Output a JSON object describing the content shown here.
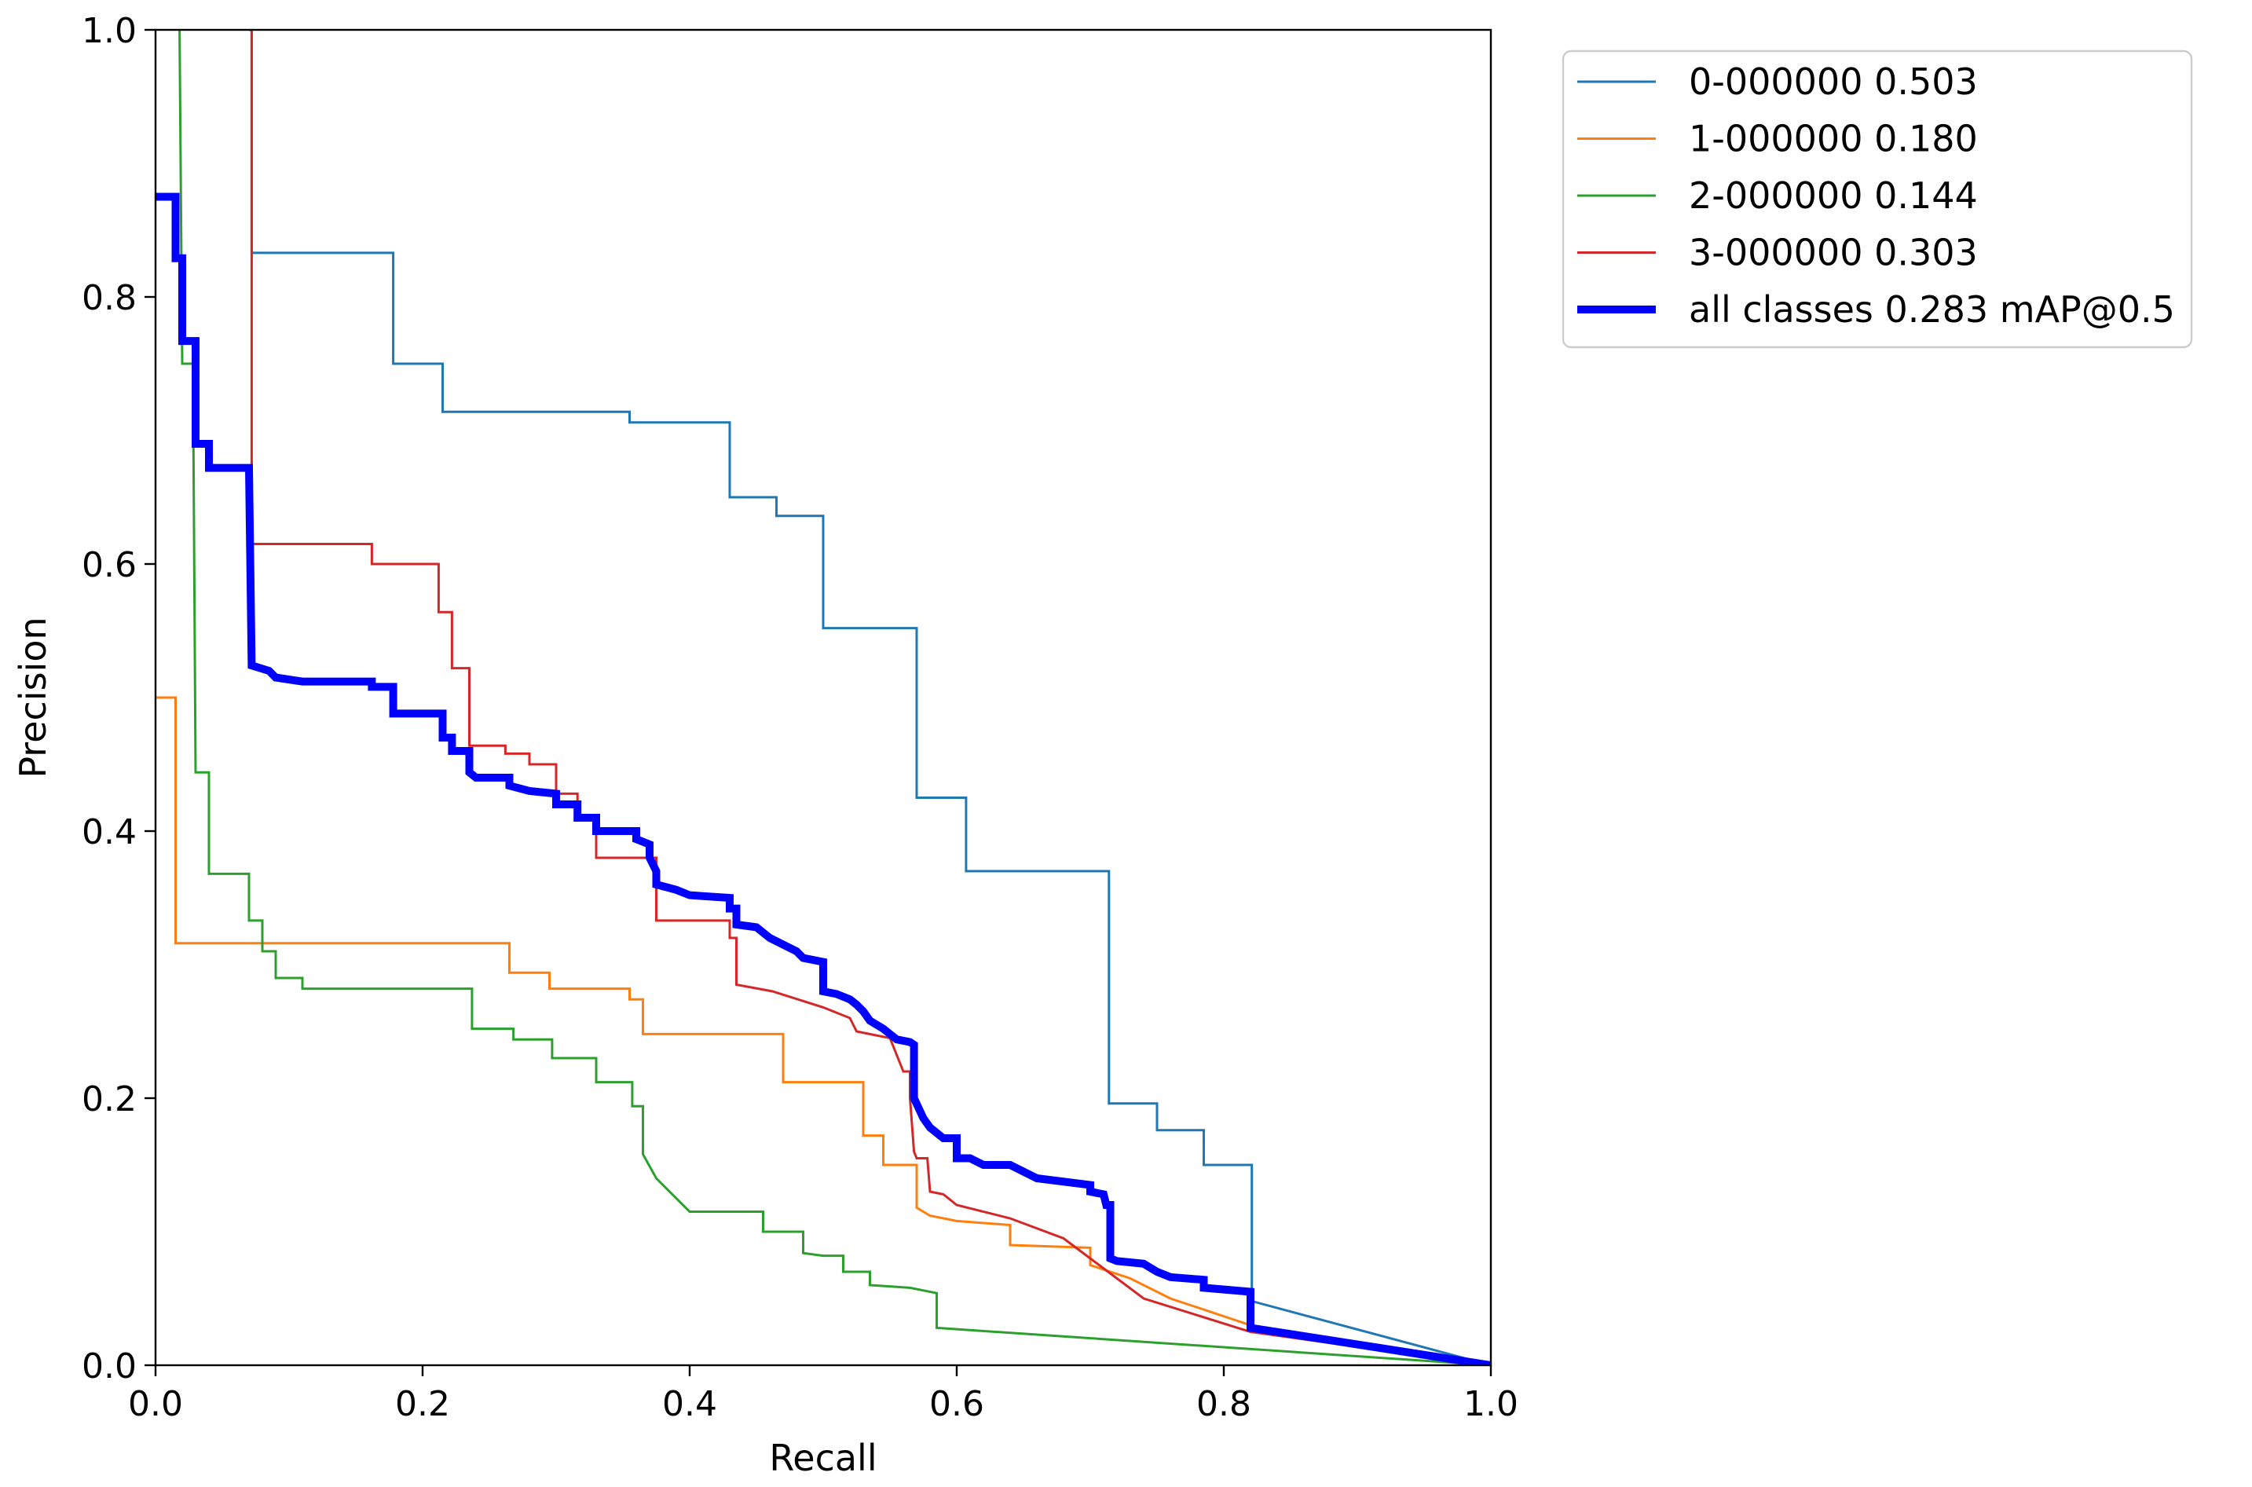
{
  "chart_data": {
    "type": "line",
    "title": "",
    "xlabel": "Recall",
    "ylabel": "Precision",
    "xlim": [
      0,
      1
    ],
    "ylim": [
      0,
      1
    ],
    "xticks": [
      "0.0",
      "0.2",
      "0.4",
      "0.6",
      "0.8",
      "1.0"
    ],
    "yticks": [
      "0.0",
      "0.2",
      "0.4",
      "0.6",
      "0.8",
      "1.0"
    ],
    "legend_position": "outside-top-right",
    "series": [
      {
        "name": "0-000000 0.503",
        "color": "#1f77b4",
        "width": "thin",
        "points": [
          [
            0.07,
            1.0
          ],
          [
            0.072,
            1.0
          ],
          [
            0.072,
            0.833
          ],
          [
            0.178,
            0.833
          ],
          [
            0.178,
            0.75
          ],
          [
            0.215,
            0.75
          ],
          [
            0.215,
            0.714
          ],
          [
            0.355,
            0.714
          ],
          [
            0.355,
            0.706
          ],
          [
            0.43,
            0.706
          ],
          [
            0.43,
            0.65
          ],
          [
            0.465,
            0.65
          ],
          [
            0.465,
            0.636
          ],
          [
            0.5,
            0.636
          ],
          [
            0.5,
            0.552
          ],
          [
            0.57,
            0.552
          ],
          [
            0.57,
            0.425
          ],
          [
            0.607,
            0.425
          ],
          [
            0.607,
            0.37
          ],
          [
            0.714,
            0.37
          ],
          [
            0.714,
            0.196
          ],
          [
            0.75,
            0.196
          ],
          [
            0.75,
            0.176
          ],
          [
            0.785,
            0.176
          ],
          [
            0.785,
            0.15
          ],
          [
            0.821,
            0.15
          ],
          [
            0.821,
            0.048
          ],
          [
            1.0,
            0.0
          ]
        ]
      },
      {
        "name": "1-000000 0.180",
        "color": "#ff7f0e",
        "width": "thin",
        "points": [
          [
            0.0,
            0.5
          ],
          [
            0.015,
            0.5
          ],
          [
            0.015,
            0.316
          ],
          [
            0.265,
            0.316
          ],
          [
            0.265,
            0.294
          ],
          [
            0.295,
            0.294
          ],
          [
            0.295,
            0.282
          ],
          [
            0.355,
            0.282
          ],
          [
            0.355,
            0.274
          ],
          [
            0.365,
            0.274
          ],
          [
            0.365,
            0.248
          ],
          [
            0.47,
            0.248
          ],
          [
            0.47,
            0.212
          ],
          [
            0.53,
            0.212
          ],
          [
            0.53,
            0.172
          ],
          [
            0.545,
            0.172
          ],
          [
            0.545,
            0.15
          ],
          [
            0.57,
            0.15
          ],
          [
            0.57,
            0.118
          ],
          [
            0.58,
            0.112
          ],
          [
            0.6,
            0.108
          ],
          [
            0.64,
            0.105
          ],
          [
            0.64,
            0.09
          ],
          [
            0.7,
            0.088
          ],
          [
            0.7,
            0.075
          ],
          [
            0.73,
            0.065
          ],
          [
            0.76,
            0.05
          ],
          [
            0.82,
            0.03
          ],
          [
            1.0,
            0.0
          ]
        ]
      },
      {
        "name": "2-000000 0.144",
        "color": "#2ca02c",
        "width": "thin",
        "points": [
          [
            0.018,
            1.0
          ],
          [
            0.02,
            0.75
          ],
          [
            0.028,
            0.75
          ],
          [
            0.03,
            0.444
          ],
          [
            0.04,
            0.444
          ],
          [
            0.04,
            0.368
          ],
          [
            0.07,
            0.368
          ],
          [
            0.07,
            0.333
          ],
          [
            0.08,
            0.333
          ],
          [
            0.08,
            0.31
          ],
          [
            0.09,
            0.31
          ],
          [
            0.09,
            0.29
          ],
          [
            0.11,
            0.29
          ],
          [
            0.11,
            0.282
          ],
          [
            0.237,
            0.282
          ],
          [
            0.237,
            0.252
          ],
          [
            0.268,
            0.252
          ],
          [
            0.268,
            0.244
          ],
          [
            0.297,
            0.244
          ],
          [
            0.297,
            0.23
          ],
          [
            0.33,
            0.23
          ],
          [
            0.33,
            0.212
          ],
          [
            0.357,
            0.212
          ],
          [
            0.357,
            0.194
          ],
          [
            0.365,
            0.194
          ],
          [
            0.365,
            0.158
          ],
          [
            0.375,
            0.14
          ],
          [
            0.387,
            0.128
          ],
          [
            0.4,
            0.115
          ],
          [
            0.455,
            0.115
          ],
          [
            0.455,
            0.1
          ],
          [
            0.485,
            0.1
          ],
          [
            0.485,
            0.084
          ],
          [
            0.5,
            0.082
          ],
          [
            0.515,
            0.082
          ],
          [
            0.515,
            0.07
          ],
          [
            0.535,
            0.07
          ],
          [
            0.535,
            0.06
          ],
          [
            0.565,
            0.058
          ],
          [
            0.585,
            0.054
          ],
          [
            0.585,
            0.028
          ],
          [
            1.0,
            0.0
          ]
        ]
      },
      {
        "name": "3-000000 0.303",
        "color": "#d62728",
        "width": "thin",
        "points": [
          [
            0.07,
            1.0
          ],
          [
            0.072,
            1.0
          ],
          [
            0.072,
            0.615
          ],
          [
            0.162,
            0.615
          ],
          [
            0.162,
            0.6
          ],
          [
            0.212,
            0.6
          ],
          [
            0.212,
            0.564
          ],
          [
            0.222,
            0.564
          ],
          [
            0.222,
            0.522
          ],
          [
            0.235,
            0.522
          ],
          [
            0.235,
            0.464
          ],
          [
            0.262,
            0.464
          ],
          [
            0.262,
            0.458
          ],
          [
            0.28,
            0.458
          ],
          [
            0.28,
            0.45
          ],
          [
            0.3,
            0.45
          ],
          [
            0.3,
            0.428
          ],
          [
            0.316,
            0.428
          ],
          [
            0.316,
            0.41
          ],
          [
            0.33,
            0.41
          ],
          [
            0.33,
            0.38
          ],
          [
            0.375,
            0.38
          ],
          [
            0.375,
            0.333
          ],
          [
            0.43,
            0.333
          ],
          [
            0.43,
            0.32
          ],
          [
            0.435,
            0.32
          ],
          [
            0.435,
            0.285
          ],
          [
            0.462,
            0.28
          ],
          [
            0.5,
            0.268
          ],
          [
            0.52,
            0.26
          ],
          [
            0.525,
            0.25
          ],
          [
            0.55,
            0.245
          ],
          [
            0.56,
            0.22
          ],
          [
            0.565,
            0.22
          ],
          [
            0.565,
            0.2
          ],
          [
            0.568,
            0.16
          ],
          [
            0.57,
            0.155
          ],
          [
            0.578,
            0.155
          ],
          [
            0.58,
            0.13
          ],
          [
            0.59,
            0.128
          ],
          [
            0.6,
            0.12
          ],
          [
            0.64,
            0.11
          ],
          [
            0.68,
            0.095
          ],
          [
            0.7,
            0.08
          ],
          [
            0.72,
            0.065
          ],
          [
            0.74,
            0.05
          ],
          [
            0.82,
            0.025
          ],
          [
            1.0,
            0.0
          ]
        ]
      },
      {
        "name": "all classes 0.283 mAP@0.5",
        "color": "#0000ff",
        "width": "thick",
        "points": [
          [
            0.0,
            0.875
          ],
          [
            0.015,
            0.875
          ],
          [
            0.015,
            0.829
          ],
          [
            0.02,
            0.829
          ],
          [
            0.02,
            0.767
          ],
          [
            0.03,
            0.767
          ],
          [
            0.03,
            0.69
          ],
          [
            0.04,
            0.69
          ],
          [
            0.04,
            0.672
          ],
          [
            0.07,
            0.672
          ],
          [
            0.072,
            0.524
          ],
          [
            0.085,
            0.52
          ],
          [
            0.09,
            0.515
          ],
          [
            0.11,
            0.512
          ],
          [
            0.162,
            0.512
          ],
          [
            0.162,
            0.508
          ],
          [
            0.178,
            0.508
          ],
          [
            0.178,
            0.488
          ],
          [
            0.215,
            0.488
          ],
          [
            0.215,
            0.47
          ],
          [
            0.222,
            0.47
          ],
          [
            0.222,
            0.46
          ],
          [
            0.235,
            0.46
          ],
          [
            0.235,
            0.444
          ],
          [
            0.24,
            0.44
          ],
          [
            0.265,
            0.44
          ],
          [
            0.265,
            0.434
          ],
          [
            0.28,
            0.43
          ],
          [
            0.3,
            0.428
          ],
          [
            0.3,
            0.42
          ],
          [
            0.316,
            0.42
          ],
          [
            0.316,
            0.41
          ],
          [
            0.33,
            0.41
          ],
          [
            0.33,
            0.4
          ],
          [
            0.36,
            0.4
          ],
          [
            0.36,
            0.394
          ],
          [
            0.37,
            0.39
          ],
          [
            0.37,
            0.38
          ],
          [
            0.375,
            0.37
          ],
          [
            0.375,
            0.36
          ],
          [
            0.39,
            0.356
          ],
          [
            0.4,
            0.352
          ],
          [
            0.43,
            0.35
          ],
          [
            0.43,
            0.342
          ],
          [
            0.435,
            0.342
          ],
          [
            0.435,
            0.33
          ],
          [
            0.45,
            0.328
          ],
          [
            0.46,
            0.32
          ],
          [
            0.47,
            0.315
          ],
          [
            0.48,
            0.31
          ],
          [
            0.485,
            0.305
          ],
          [
            0.5,
            0.302
          ],
          [
            0.5,
            0.28
          ],
          [
            0.51,
            0.278
          ],
          [
            0.52,
            0.274
          ],
          [
            0.525,
            0.27
          ],
          [
            0.53,
            0.265
          ],
          [
            0.535,
            0.258
          ],
          [
            0.545,
            0.252
          ],
          [
            0.55,
            0.248
          ],
          [
            0.555,
            0.244
          ],
          [
            0.565,
            0.242
          ],
          [
            0.568,
            0.24
          ],
          [
            0.568,
            0.2
          ],
          [
            0.575,
            0.185
          ],
          [
            0.58,
            0.178
          ],
          [
            0.59,
            0.17
          ],
          [
            0.6,
            0.17
          ],
          [
            0.6,
            0.155
          ],
          [
            0.61,
            0.155
          ],
          [
            0.62,
            0.15
          ],
          [
            0.64,
            0.15
          ],
          [
            0.65,
            0.145
          ],
          [
            0.66,
            0.14
          ],
          [
            0.7,
            0.135
          ],
          [
            0.7,
            0.13
          ],
          [
            0.71,
            0.128
          ],
          [
            0.712,
            0.12
          ],
          [
            0.715,
            0.12
          ],
          [
            0.715,
            0.08
          ],
          [
            0.72,
            0.078
          ],
          [
            0.74,
            0.076
          ],
          [
            0.75,
            0.07
          ],
          [
            0.76,
            0.066
          ],
          [
            0.785,
            0.064
          ],
          [
            0.785,
            0.058
          ],
          [
            0.82,
            0.055
          ],
          [
            0.82,
            0.028
          ],
          [
            1.0,
            0.0
          ]
        ]
      }
    ]
  }
}
